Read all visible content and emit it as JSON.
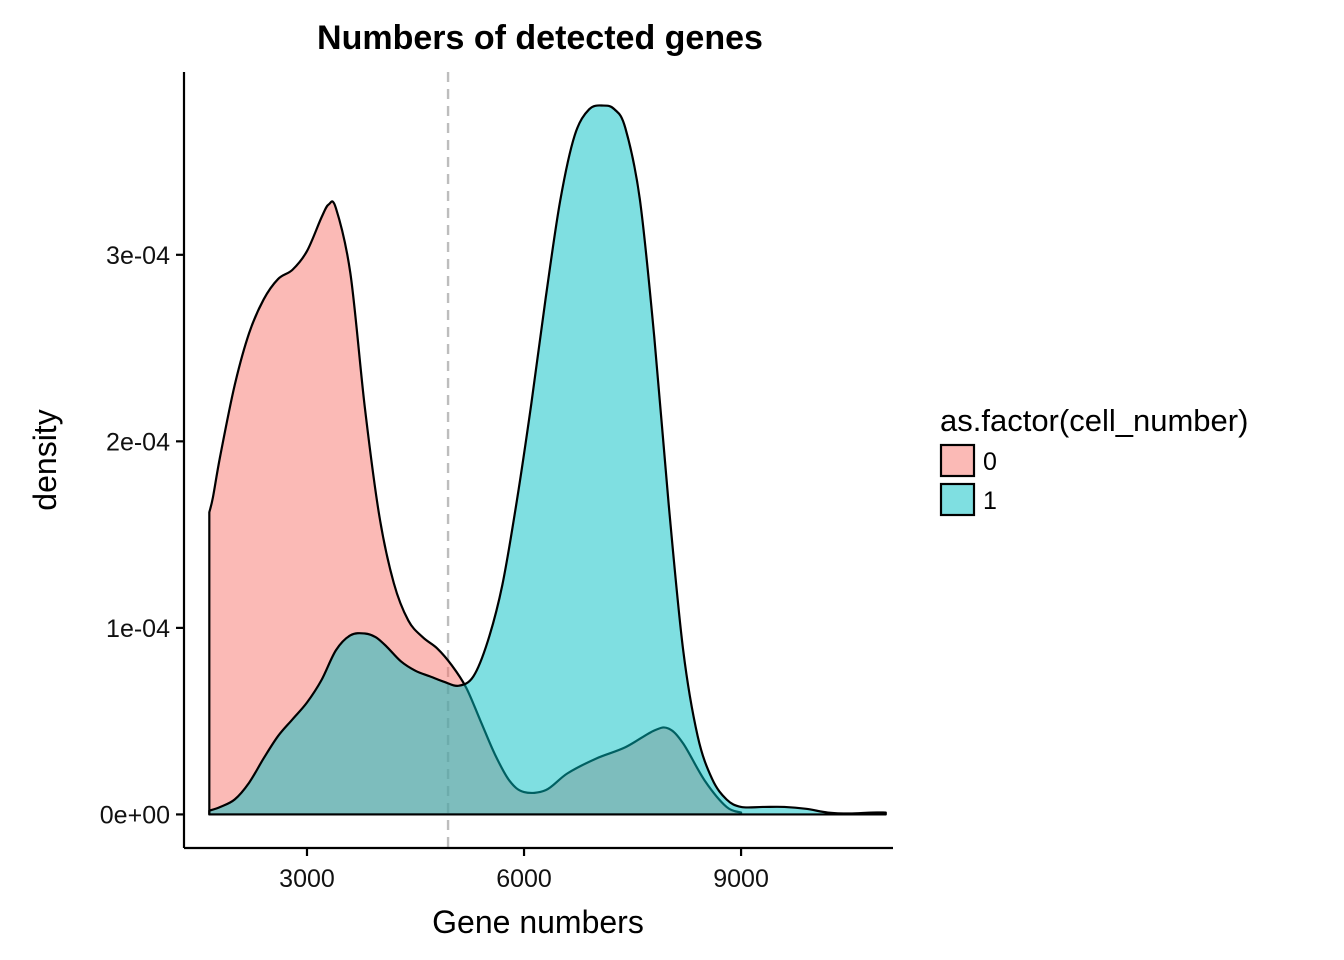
{
  "chart_data": {
    "type": "area",
    "title": "Numbers of detected genes",
    "xlabel": "Gene numbers",
    "ylabel": "density",
    "xlim": [
      1300,
      11100
    ],
    "ylim": [
      -1.8e-05,
      0.000398
    ],
    "x_ticks": [
      3000,
      6000,
      9000
    ],
    "x_tick_labels": [
      "3000",
      "6000",
      "9000"
    ],
    "y_ticks": [
      0,
      0.0001,
      0.0002,
      0.0003
    ],
    "y_tick_labels": [
      "0e+00",
      "1e-04",
      "2e-04",
      "3e-04"
    ],
    "grid": false,
    "legend": {
      "title": "as.factor(cell_number)",
      "placement": "right",
      "entries": [
        "0",
        "1"
      ]
    },
    "reference_line": {
      "x": 4950,
      "style": "dashed",
      "color": "#bdbdbd"
    },
    "series": [
      {
        "name": "0",
        "color": "#f8766d",
        "x": [
          1650,
          1700,
          1800,
          2000,
          2200,
          2400,
          2600,
          2800,
          3000,
          3200,
          3300,
          3400,
          3600,
          3800,
          4000,
          4200,
          4400,
          4600,
          4800,
          5000,
          5200,
          5400,
          5600,
          5800,
          6000,
          6300,
          6600,
          7000,
          7400,
          7800,
          8000,
          8200,
          8500,
          8800,
          9000
        ],
        "values": [
          0.000162,
          0.00017,
          0.000192,
          0.00023,
          0.000258,
          0.000276,
          0.000287,
          0.000292,
          0.000302,
          0.00032,
          0.000327,
          0.000325,
          0.00029,
          0.000218,
          0.00016,
          0.000124,
          0.000104,
          9.5e-05,
          8.9e-05,
          8e-05,
          6.8e-05,
          5e-05,
          3.2e-05,
          1.8e-05,
          1.2e-05,
          1.3e-05,
          2.2e-05,
          3e-05,
          3.6e-05,
          4.5e-05,
          4.6e-05,
          3.8e-05,
          1.8e-05,
          4e-06,
          1e-06
        ]
      },
      {
        "name": "1",
        "color": "#00bfc4",
        "x": [
          1650,
          1800,
          2000,
          2200,
          2400,
          2600,
          2800,
          3000,
          3200,
          3400,
          3600,
          3800,
          3950,
          4100,
          4300,
          4500,
          4700,
          4900,
          5100,
          5300,
          5500,
          5700,
          5900,
          6100,
          6300,
          6500,
          6700,
          6900,
          7100,
          7250,
          7400,
          7600,
          7800,
          8000,
          8200,
          8400,
          8600,
          8800,
          9000,
          9300,
          9600,
          9900,
          10200,
          10500,
          10800,
          11000
        ],
        "values": [
          2e-06,
          4e-06,
          8e-06,
          1.7e-05,
          3e-05,
          4.2e-05,
          5.1e-05,
          6e-05,
          7.2e-05,
          8.8e-05,
          9.6e-05,
          9.7e-05,
          9.5e-05,
          9e-05,
          8.2e-05,
          7.7e-05,
          7.4e-05,
          7.1e-05,
          6.9e-05,
          7.4e-05,
          9.3e-05,
          0.000123,
          0.000168,
          0.00022,
          0.000277,
          0.000329,
          0.000364,
          0.000378,
          0.00038,
          0.000378,
          0.000368,
          0.00033,
          0.000256,
          0.000166,
          8.8e-05,
          4.2e-05,
          1.9e-05,
          8e-06,
          4e-06,
          4e-06,
          4e-06,
          3e-06,
          1e-06,
          5e-07,
          1e-06,
          1e-06
        ]
      }
    ]
  }
}
